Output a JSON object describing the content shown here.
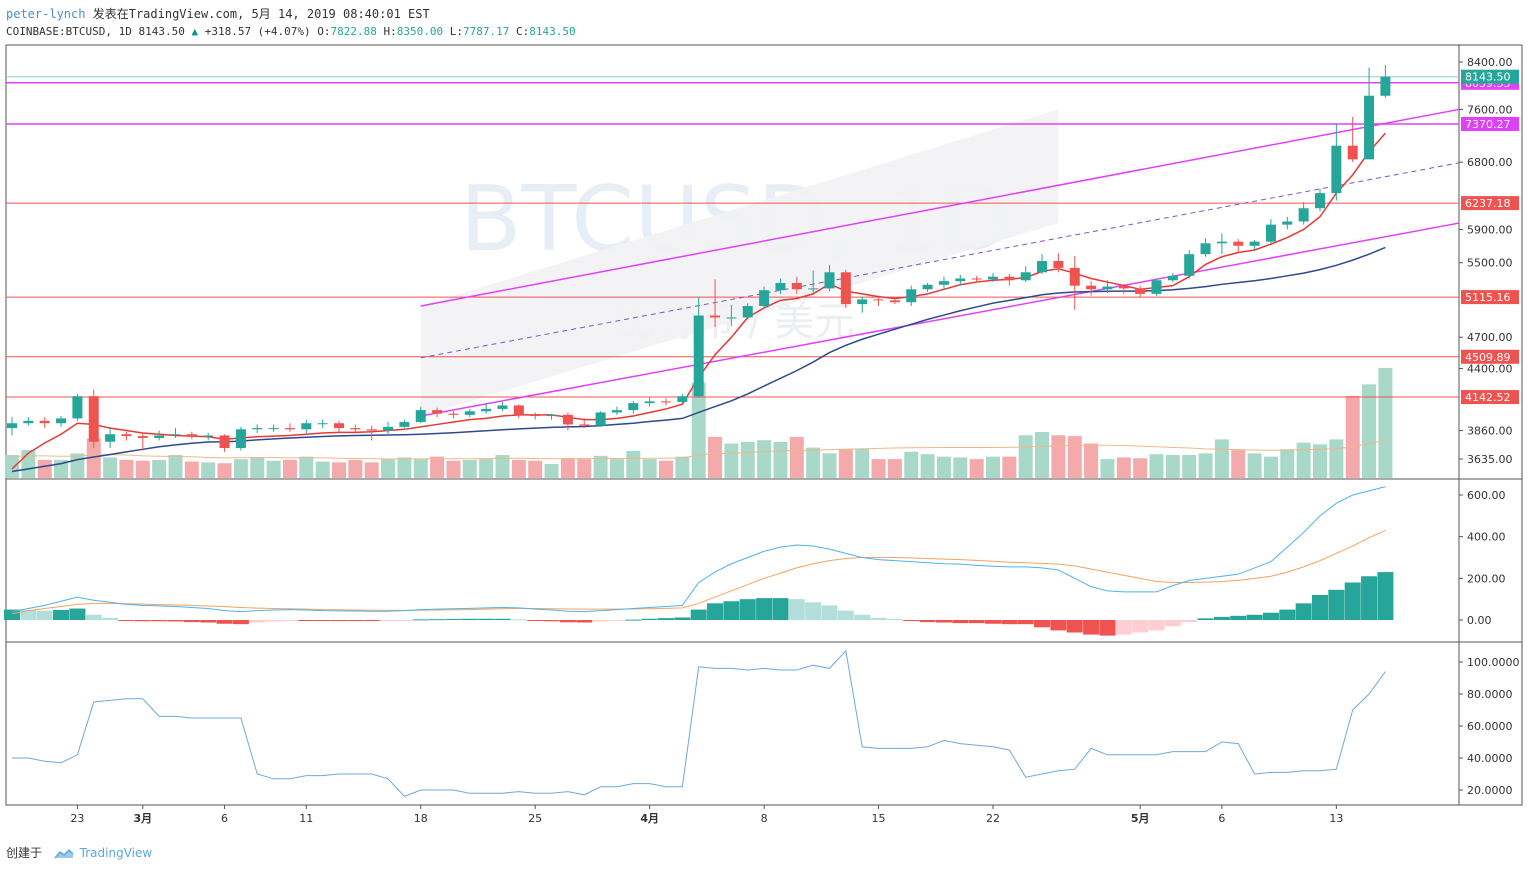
{
  "header": {
    "author": "peter-lynch",
    "published": "发表在TradingView.com, 5月 14, 2019 08:40:01 EST",
    "symbol": "COINBASE:BTCUSD, 1D",
    "last": "8143.50",
    "change": "+318.57 (+4.07%)",
    "o_label": "O:",
    "o_value": "7822.88",
    "h_label": "H:",
    "h_value": "8350.00",
    "l_label": "L:",
    "l_value": "7787.17",
    "c_label": "C:",
    "c_value": "8143.50"
  },
  "footer": {
    "created": "创建于",
    "brand": "TradingView"
  },
  "colors": {
    "up": "#26a69a",
    "down": "#ef5350",
    "channel": "#e040fb",
    "ma_fast": "#e53935",
    "ma_slow": "#2c4a8c",
    "macd": "#4fb3e8",
    "signal": "#f4a460"
  },
  "chart_data": {
    "type": "candlestick",
    "watermark": "BTCUSD, 1D",
    "watermark_sub": "比特币 / 美元",
    "dates": [
      "2019-02-19",
      "2019-02-20",
      "2019-02-21",
      "2019-02-22",
      "2019-02-23",
      "2019-02-24",
      "2019-02-25",
      "2019-02-26",
      "2019-02-27",
      "2019-02-28",
      "2019-03-01",
      "2019-03-02",
      "2019-03-03",
      "2019-03-04",
      "2019-03-05",
      "2019-03-06",
      "2019-03-07",
      "2019-03-08",
      "2019-03-09",
      "2019-03-10",
      "2019-03-11",
      "2019-03-12",
      "2019-03-13",
      "2019-03-14",
      "2019-03-15",
      "2019-03-16",
      "2019-03-17",
      "2019-03-18",
      "2019-03-19",
      "2019-03-20",
      "2019-03-21",
      "2019-03-22",
      "2019-03-23",
      "2019-03-24",
      "2019-03-25",
      "2019-03-26",
      "2019-03-27",
      "2019-03-28",
      "2019-03-29",
      "2019-03-30",
      "2019-03-31",
      "2019-04-01",
      "2019-04-02",
      "2019-04-03",
      "2019-04-04",
      "2019-04-05",
      "2019-04-06",
      "2019-04-07",
      "2019-04-08",
      "2019-04-09",
      "2019-04-10",
      "2019-04-11",
      "2019-04-12",
      "2019-04-13",
      "2019-04-14",
      "2019-04-15",
      "2019-04-16",
      "2019-04-17",
      "2019-04-18",
      "2019-04-19",
      "2019-04-20",
      "2019-04-21",
      "2019-04-22",
      "2019-04-23",
      "2019-04-24",
      "2019-04-25",
      "2019-04-26",
      "2019-04-27",
      "2019-04-28",
      "2019-04-29",
      "2019-04-30",
      "2019-05-01",
      "2019-05-02",
      "2019-05-03",
      "2019-05-04",
      "2019-05-05",
      "2019-05-06",
      "2019-05-07",
      "2019-05-08",
      "2019-05-09",
      "2019-05-10",
      "2019-05-11",
      "2019-05-12",
      "2019-05-13",
      "2019-05-14"
    ],
    "open": [
      3880,
      3920,
      3940,
      3920,
      3960,
      4150,
      3770,
      3830,
      3815,
      3800,
      3820,
      3830,
      3810,
      3820,
      3720,
      3870,
      3880,
      3880,
      3870,
      3920,
      3920,
      3880,
      3870,
      3860,
      3890,
      3930,
      4030,
      4000,
      3990,
      4020,
      4040,
      4070,
      3990,
      3980,
      3990,
      3910,
      3900,
      4010,
      4030,
      4090,
      4105,
      4100,
      4150,
      4920,
      4900,
      4900,
      5020,
      5190,
      5270,
      5200,
      5210,
      5390,
      5040,
      5090,
      5080,
      5060,
      5200,
      5250,
      5290,
      5320,
      5310,
      5340,
      5300,
      5390,
      5520,
      5440,
      5240,
      5200,
      5230,
      5210,
      5150,
      5300,
      5350,
      5600,
      5730,
      5750,
      5700,
      5750,
      5960,
      6000,
      6170,
      6370,
      7040,
      6840,
      7822.88
    ],
    "close": [
      3920,
      3940,
      3920,
      3960,
      4150,
      3770,
      3830,
      3815,
      3800,
      3820,
      3830,
      3810,
      3820,
      3720,
      3870,
      3880,
      3880,
      3870,
      3920,
      3920,
      3880,
      3870,
      3860,
      3890,
      3930,
      4030,
      4000,
      3990,
      4020,
      4040,
      4070,
      3990,
      3980,
      3990,
      3910,
      3900,
      4010,
      4030,
      4090,
      4105,
      4100,
      4150,
      4920,
      4900,
      4900,
      5020,
      5190,
      5270,
      5200,
      5210,
      5390,
      5040,
      5090,
      5080,
      5060,
      5200,
      5250,
      5290,
      5320,
      5310,
      5340,
      5300,
      5390,
      5520,
      5440,
      5240,
      5200,
      5230,
      5210,
      5150,
      5300,
      5350,
      5600,
      5730,
      5750,
      5700,
      5750,
      5960,
      6000,
      6170,
      6370,
      7040,
      6840,
      7822.88,
      8143.5
    ],
    "high": [
      3970,
      3970,
      3970,
      3980,
      4170,
      4210,
      3890,
      3850,
      3840,
      3860,
      3880,
      3850,
      3840,
      3830,
      3890,
      3910,
      3910,
      3920,
      3950,
      3950,
      3940,
      3910,
      3900,
      3930,
      3950,
      4060,
      4050,
      4020,
      4040,
      4090,
      4100,
      4080,
      4010,
      4000,
      4010,
      3960,
      4020,
      4060,
      4110,
      4140,
      4130,
      4170,
      5120,
      5310,
      5030,
      5050,
      5230,
      5320,
      5340,
      5410,
      5470,
      5420,
      5120,
      5120,
      5100,
      5240,
      5270,
      5340,
      5360,
      5350,
      5380,
      5370,
      5460,
      5600,
      5610,
      5580,
      5290,
      5300,
      5260,
      5240,
      5320,
      5380,
      5650,
      5790,
      5850,
      5780,
      5770,
      6030,
      6060,
      6250,
      6430,
      7380,
      7480,
      8300,
      8350
    ],
    "low": [
      3820,
      3900,
      3880,
      3890,
      3940,
      3720,
      3720,
      3780,
      3700,
      3780,
      3800,
      3790,
      3780,
      3690,
      3700,
      3840,
      3850,
      3850,
      3840,
      3880,
      3850,
      3840,
      3780,
      3820,
      3880,
      3920,
      3970,
      3960,
      3970,
      4000,
      4020,
      3960,
      3950,
      3950,
      3860,
      3880,
      3890,
      3990,
      4000,
      4060,
      4070,
      4090,
      4140,
      4800,
      4810,
      4880,
      4990,
      5150,
      5150,
      5150,
      5180,
      5000,
      4950,
      5020,
      5040,
      5020,
      5170,
      5200,
      5240,
      5270,
      5280,
      5240,
      5280,
      5370,
      5390,
      4980,
      5130,
      5160,
      5150,
      5110,
      5130,
      5280,
      5320,
      5570,
      5600,
      5630,
      5650,
      5720,
      5900,
      5960,
      6130,
      6270,
      6800,
      6850,
      7787.17
    ],
    "volume": [
      280,
      340,
      220,
      220,
      300,
      480,
      250,
      220,
      210,
      220,
      280,
      200,
      190,
      180,
      230,
      250,
      210,
      220,
      260,
      200,
      190,
      220,
      190,
      230,
      250,
      230,
      260,
      210,
      220,
      230,
      280,
      220,
      210,
      170,
      240,
      230,
      270,
      230,
      330,
      230,
      210,
      260,
      1160,
      500,
      420,
      440,
      460,
      440,
      500,
      370,
      300,
      350,
      360,
      230,
      230,
      320,
      290,
      260,
      250,
      230,
      260,
      260,
      520,
      560,
      520,
      510,
      420,
      230,
      250,
      240,
      290,
      280,
      280,
      300,
      470,
      340,
      300,
      260,
      350,
      430,
      410,
      470,
      1000,
      1140,
      1340
    ],
    "volume_ma": [
      260,
      270,
      270,
      265,
      268,
      280,
      285,
      280,
      270,
      265,
      262,
      258,
      250,
      245,
      248,
      250,
      248,
      245,
      248,
      245,
      240,
      238,
      235,
      232,
      232,
      233,
      235,
      234,
      234,
      236,
      240,
      240,
      238,
      235,
      236,
      236,
      238,
      238,
      240,
      240,
      242,
      245,
      280,
      295,
      300,
      310,
      322,
      330,
      335,
      340,
      345,
      350,
      355,
      360,
      365,
      368,
      370,
      372,
      372,
      372,
      372,
      373,
      378,
      385,
      390,
      398,
      400,
      398,
      395,
      388,
      380,
      372,
      365,
      355,
      350,
      345,
      340,
      338,
      340,
      345,
      350,
      356,
      380,
      420,
      460
    ],
    "ma_fast": [
      3560,
      3680,
      3760,
      3830,
      3920,
      3910,
      3880,
      3860,
      3840,
      3830,
      3820,
      3815,
      3810,
      3790,
      3800,
      3810,
      3815,
      3820,
      3830,
      3840,
      3845,
      3845,
      3850,
      3860,
      3870,
      3890,
      3910,
      3930,
      3950,
      3960,
      3980,
      3990,
      3990,
      3990,
      3970,
      3950,
      3950,
      3960,
      3980,
      4010,
      4040,
      4080,
      4320,
      4530,
      4700,
      4900,
      5000,
      5080,
      5100,
      5150,
      5260,
      5180,
      5150,
      5120,
      5100,
      5120,
      5150,
      5200,
      5250,
      5280,
      5300,
      5310,
      5330,
      5400,
      5430,
      5380,
      5320,
      5280,
      5240,
      5200,
      5220,
      5240,
      5340,
      5480,
      5570,
      5620,
      5650,
      5720,
      5800,
      5900,
      6060,
      6370,
      6620,
      6950,
      7230
    ],
    "ma_slow": [
      3540,
      3560,
      3580,
      3600,
      3630,
      3650,
      3670,
      3690,
      3710,
      3730,
      3745,
      3758,
      3768,
      3770,
      3775,
      3785,
      3793,
      3800,
      3806,
      3812,
      3817,
      3820,
      3822,
      3824,
      3826,
      3830,
      3836,
      3842,
      3850,
      3858,
      3866,
      3874,
      3880,
      3886,
      3890,
      3893,
      3900,
      3910,
      3920,
      3934,
      3946,
      3960,
      4010,
      4060,
      4110,
      4170,
      4240,
      4310,
      4380,
      4460,
      4550,
      4620,
      4680,
      4730,
      4780,
      4830,
      4880,
      4925,
      4970,
      5010,
      5050,
      5080,
      5110,
      5140,
      5160,
      5170,
      5175,
      5178,
      5180,
      5180,
      5185,
      5195,
      5210,
      5230,
      5255,
      5275,
      5295,
      5320,
      5350,
      5380,
      5420,
      5470,
      5530,
      5600,
      5680
    ],
    "channel_upper": {
      "x": [
        25,
        64
      ],
      "y": [
        5020,
        7600
      ]
    },
    "channel_lower": {
      "x": [
        25,
        64
      ],
      "y": [
        3980,
        5980
      ]
    },
    "channel_mid": {
      "x": [
        25,
        64
      ],
      "y": [
        4500,
        6790
      ]
    },
    "horizontal_levels": [
      {
        "price": 8039.33,
        "label": "8039.33",
        "color": "#e040fb"
      },
      {
        "price": 7370.27,
        "label": "7370.27",
        "color": "#e040fb"
      },
      {
        "price": 6237.18,
        "label": "6237.18",
        "color": "#ef5350"
      },
      {
        "price": 5115.16,
        "label": "5115.16",
        "color": "#ef5350"
      },
      {
        "price": 4509.89,
        "label": "4509.89",
        "color": "#ef5350"
      },
      {
        "price": 4142.52,
        "label": "4142.52",
        "color": "#ef5350"
      }
    ],
    "price_ticks": [
      "8400.00",
      "7600.00",
      "6800.00",
      "5900.00",
      "5500.00",
      "4700.00",
      "4400.00",
      "3860.00",
      "3635.00"
    ],
    "last_price_label": "8143.50",
    "date_ticks": [
      {
        "idx": 4,
        "label": "23"
      },
      {
        "idx": 8,
        "label": "3月"
      },
      {
        "idx": 13,
        "label": "6"
      },
      {
        "idx": 18,
        "label": "11"
      },
      {
        "idx": 25,
        "label": "18"
      },
      {
        "idx": 32,
        "label": "25"
      },
      {
        "idx": 39,
        "label": "4月"
      },
      {
        "idx": 46,
        "label": "8"
      },
      {
        "idx": 53,
        "label": "15"
      },
      {
        "idx": 60,
        "label": "22"
      },
      {
        "idx": 69,
        "label": "5月"
      },
      {
        "idx": 74,
        "label": "6"
      },
      {
        "idx": 81,
        "label": "13"
      }
    ],
    "macd": {
      "ticks": [
        "600.00",
        "400.00",
        "200.00",
        "0.00"
      ],
      "macd_line": [
        40,
        55,
        70,
        90,
        110,
        95,
        85,
        75,
        70,
        68,
        65,
        60,
        55,
        45,
        40,
        45,
        48,
        50,
        48,
        45,
        44,
        43,
        42,
        42,
        45,
        50,
        52,
        54,
        56,
        58,
        60,
        58,
        52,
        48,
        42,
        40,
        45,
        50,
        55,
        60,
        65,
        70,
        180,
        230,
        270,
        300,
        330,
        350,
        360,
        355,
        340,
        320,
        300,
        290,
        285,
        280,
        275,
        270,
        268,
        262,
        258,
        255,
        255,
        250,
        240,
        200,
        160,
        140,
        135,
        135,
        135,
        165,
        190,
        200,
        210,
        220,
        250,
        280,
        350,
        420,
        500,
        560,
        600,
        620,
        640
      ],
      "signal_line": [
        30,
        45,
        55,
        65,
        75,
        80,
        80,
        78,
        76,
        74,
        72,
        70,
        67,
        64,
        60,
        57,
        55,
        54,
        52,
        50,
        49,
        48,
        47,
        46,
        46,
        47,
        48,
        49,
        50,
        52,
        54,
        55,
        55,
        54,
        53,
        52,
        52,
        52,
        53,
        54,
        56,
        58,
        80,
        110,
        140,
        170,
        200,
        225,
        250,
        270,
        285,
        295,
        300,
        300,
        300,
        298,
        295,
        292,
        290,
        286,
        282,
        278,
        275,
        272,
        268,
        260,
        245,
        230,
        215,
        200,
        185,
        180,
        180,
        182,
        185,
        190,
        200,
        210,
        230,
        255,
        285,
        320,
        355,
        395,
        430
      ],
      "histogram": [
        50,
        48,
        45,
        48,
        55,
        25,
        10,
        -3,
        -6,
        -6,
        -7,
        -10,
        -12,
        -18,
        -20,
        -12,
        -7,
        -4,
        -4,
        -5,
        -5,
        -5,
        -5,
        -4,
        -1,
        3,
        4,
        5,
        6,
        6,
        6,
        3,
        -3,
        -6,
        -11,
        -12,
        -7,
        -2,
        2,
        6,
        9,
        12,
        50,
        80,
        90,
        100,
        105,
        105,
        100,
        85,
        70,
        45,
        25,
        10,
        5,
        -5,
        -10,
        -12,
        -15,
        -15,
        -18,
        -20,
        -20,
        -35,
        -50,
        -60,
        -70,
        -75,
        -70,
        -60,
        -50,
        -30,
        -10,
        8,
        15,
        20,
        25,
        35,
        50,
        80,
        120,
        145,
        180,
        210,
        230
      ]
    },
    "oscillator": {
      "ticks": [
        "100.0000",
        "80.0000",
        "60.0000",
        "40.0000",
        "20.0000"
      ],
      "values": [
        40,
        40,
        38,
        37,
        42,
        75,
        76,
        77,
        77,
        66,
        66,
        65,
        65,
        65,
        65,
        30,
        27,
        27,
        29,
        29,
        30,
        30,
        30,
        27,
        16,
        20,
        20,
        20,
        18,
        18,
        18,
        19,
        18,
        18,
        19,
        17,
        22,
        22,
        24,
        24,
        22,
        22,
        97,
        96,
        96,
        95,
        96,
        95,
        95,
        98,
        96,
        107,
        47,
        46,
        46,
        46,
        47,
        51,
        49,
        48,
        47,
        45,
        28,
        30,
        32,
        33,
        46,
        42,
        42,
        42,
        42,
        44,
        44,
        44,
        50,
        49,
        30,
        31,
        31,
        32,
        32,
        33,
        70,
        80,
        94
      ]
    }
  }
}
